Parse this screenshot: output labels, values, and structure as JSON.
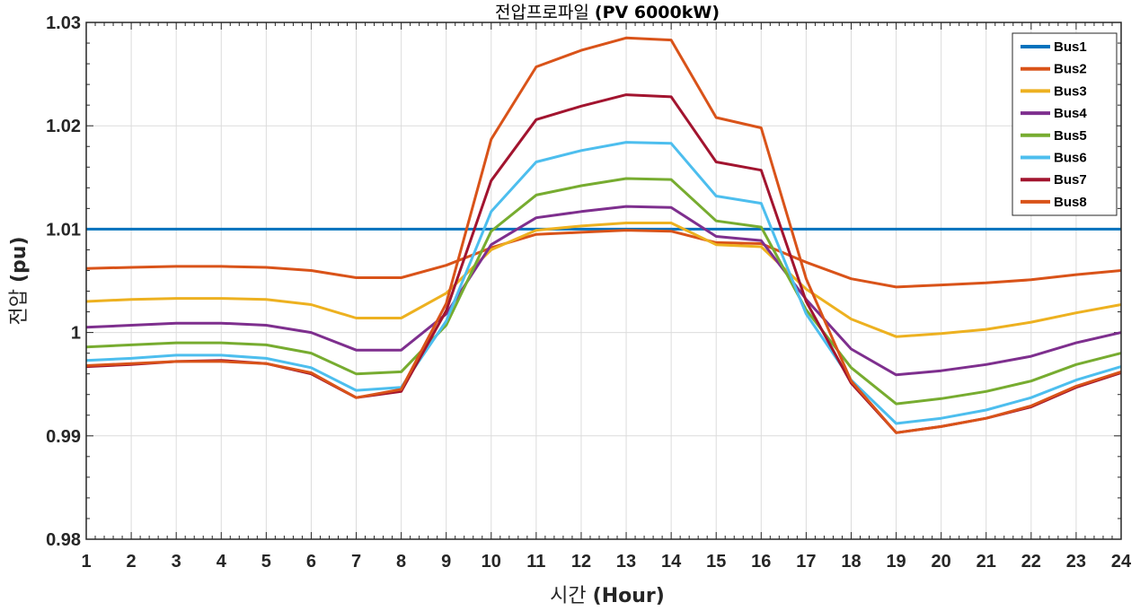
{
  "chart_data": {
    "type": "line",
    "title_prefix": "전압프로파일",
    "title_bold": "(PV 6000kW)",
    "ylabel_prefix": "전압",
    "ylabel_bold": "(pu)",
    "xlabel_prefix": "시간",
    "xlabel_bold": "(Hour)",
    "x": [
      1,
      2,
      3,
      4,
      5,
      6,
      7,
      8,
      9,
      10,
      11,
      12,
      13,
      14,
      15,
      16,
      17,
      18,
      19,
      20,
      21,
      22,
      23,
      24
    ],
    "xlim": [
      1,
      24
    ],
    "ylim": [
      0.98,
      1.03
    ],
    "yticks": [
      0.98,
      0.99,
      1.0,
      1.01,
      1.02,
      1.03
    ],
    "ytick_labels": [
      "0.98",
      "0.99",
      "1",
      "1.01",
      "1.02",
      "1.03"
    ],
    "grid": true,
    "legend_position": "top-right",
    "series": [
      {
        "name": "Bus1",
        "color": "#0072BD",
        "values": [
          1.01,
          1.01,
          1.01,
          1.01,
          1.01,
          1.01,
          1.01,
          1.01,
          1.01,
          1.01,
          1.01,
          1.01,
          1.01,
          1.01,
          1.01,
          1.01,
          1.01,
          1.01,
          1.01,
          1.01,
          1.01,
          1.01,
          1.01,
          1.01
        ]
      },
      {
        "name": "Bus2",
        "color": "#D95319",
        "values": [
          1.0062,
          1.0063,
          1.0064,
          1.0064,
          1.0063,
          1.006,
          1.0053,
          1.0053,
          1.0065,
          1.0082,
          1.0095,
          1.0097,
          1.0099,
          1.0098,
          1.0087,
          1.0086,
          1.0068,
          1.0052,
          1.0044,
          1.0046,
          1.0048,
          1.0051,
          1.0056,
          1.006
        ]
      },
      {
        "name": "Bus3",
        "color": "#EDB120",
        "values": [
          1.003,
          1.0032,
          1.0033,
          1.0033,
          1.0032,
          1.0027,
          1.0014,
          1.0014,
          1.0038,
          1.008,
          1.0099,
          1.0103,
          1.0106,
          1.0106,
          1.0085,
          1.0083,
          1.0042,
          1.0013,
          0.9996,
          0.9999,
          1.0003,
          1.001,
          1.0019,
          1.0027
        ]
      },
      {
        "name": "Bus4",
        "color": "#7E2F8E",
        "values": [
          1.0005,
          1.0007,
          1.0009,
          1.0009,
          1.0007,
          1.0,
          0.9983,
          0.9983,
          1.0018,
          1.0085,
          1.0111,
          1.0117,
          1.0122,
          1.0121,
          1.0093,
          1.0089,
          1.0032,
          0.9984,
          0.9959,
          0.9963,
          0.9969,
          0.9977,
          0.999,
          1.0
        ]
      },
      {
        "name": "Bus5",
        "color": "#77AC30",
        "values": [
          0.9986,
          0.9988,
          0.999,
          0.999,
          0.9988,
          0.998,
          0.996,
          0.9962,
          1.0007,
          1.0098,
          1.0133,
          1.0142,
          1.0149,
          1.0148,
          1.0108,
          1.0102,
          1.0022,
          0.9966,
          0.9931,
          0.9936,
          0.9943,
          0.9953,
          0.9969,
          0.998
        ]
      },
      {
        "name": "Bus6",
        "color": "#4DBEEE",
        "values": [
          0.9973,
          0.9975,
          0.9978,
          0.9978,
          0.9975,
          0.9966,
          0.9944,
          0.9947,
          1.0011,
          1.0117,
          1.0165,
          1.0176,
          1.0184,
          1.0183,
          1.0132,
          1.0125,
          1.0018,
          0.9954,
          0.9912,
          0.9917,
          0.9925,
          0.9937,
          0.9954,
          0.9967
        ]
      },
      {
        "name": "Bus7",
        "color": "#A2142F",
        "values": [
          0.9967,
          0.9969,
          0.9972,
          0.9973,
          0.997,
          0.996,
          0.9937,
          0.9943,
          1.0021,
          1.0147,
          1.0206,
          1.0219,
          1.023,
          1.0228,
          1.0165,
          1.0157,
          1.003,
          0.9951,
          0.9903,
          0.9909,
          0.9917,
          0.9928,
          0.9947,
          0.9961
        ]
      },
      {
        "name": "Bus8",
        "color": "#D95319",
        "values": [
          0.9968,
          0.997,
          0.9972,
          0.9972,
          0.997,
          0.9961,
          0.9937,
          0.9945,
          1.0028,
          1.0187,
          1.0257,
          1.0273,
          1.0285,
          1.0283,
          1.0208,
          1.0198,
          1.0052,
          0.9953,
          0.9903,
          0.9909,
          0.9917,
          0.9929,
          0.9948,
          0.9962
        ]
      }
    ]
  }
}
